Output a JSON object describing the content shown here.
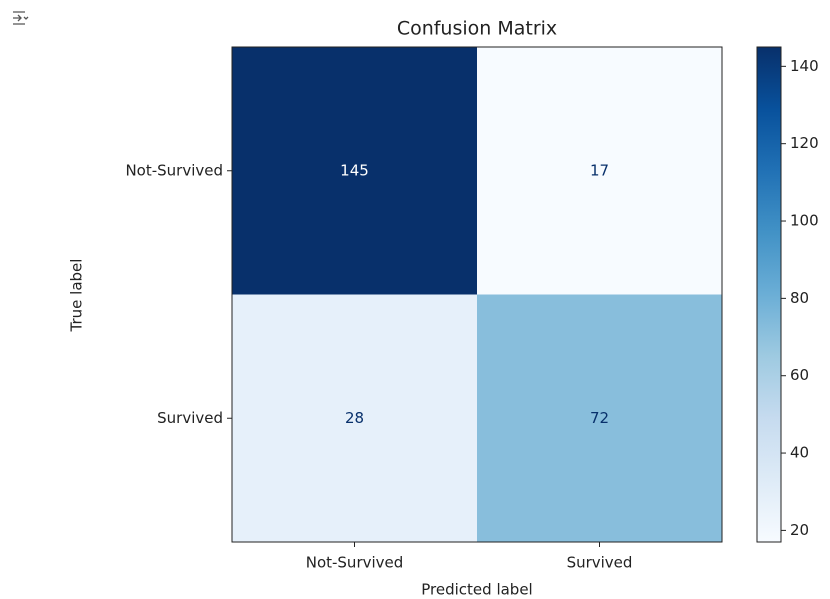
{
  "chart_data": {
    "type": "heatmap",
    "title": "Confusion Matrix",
    "xlabel": "Predicted label",
    "ylabel": "True label",
    "x_categories": [
      "Not-Survived",
      "Survived"
    ],
    "y_categories": [
      "Not-Survived",
      "Survived"
    ],
    "values": [
      [
        145,
        17
      ],
      [
        28,
        72
      ]
    ],
    "colormap": "Blues",
    "clim": [
      17,
      145
    ],
    "cticks": [
      20,
      40,
      60,
      80,
      100,
      120,
      140
    ]
  }
}
